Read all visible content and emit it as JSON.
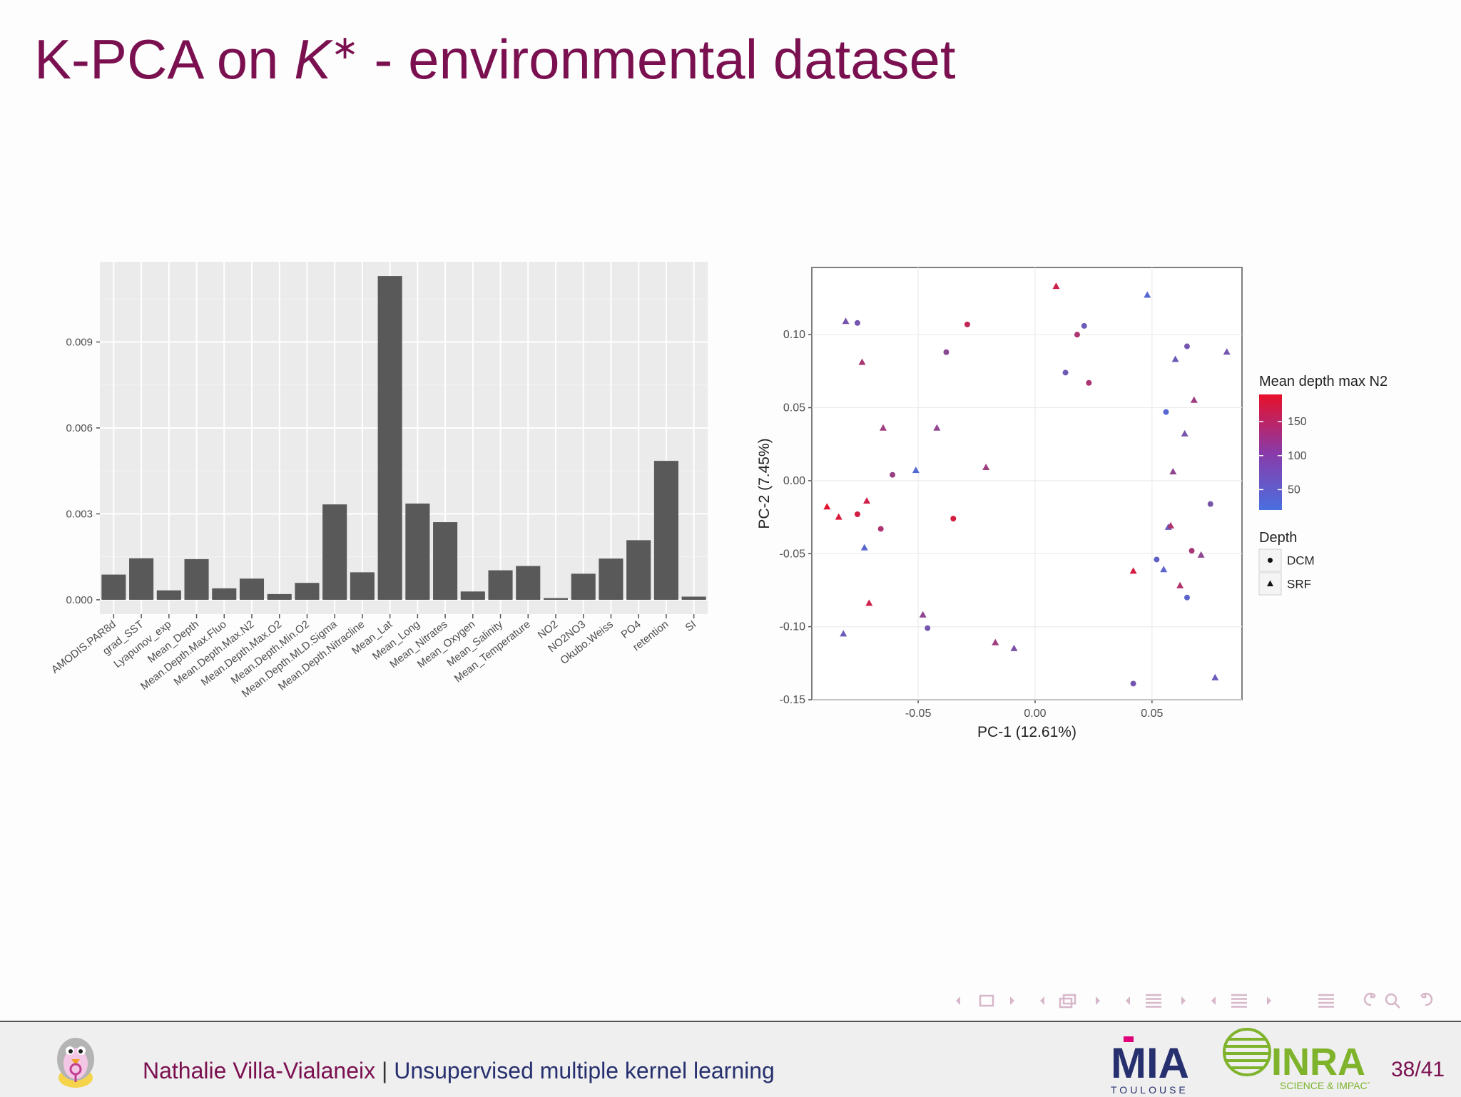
{
  "slide": {
    "title_prefix": "K-PCA on ",
    "title_k": "K",
    "title_star": "∗",
    "title_suffix": " - environmental dataset"
  },
  "footer": {
    "author": "Nathalie Villa-Vialaneix",
    "separator": " | ",
    "talk": "Unsupervised multiple kernel learning",
    "page": "38/41",
    "mia_text": "MIA",
    "mia_sub": "TOULOUSE",
    "inra_text": "INRA",
    "inra_sub": "SCIENCE & IMPACT"
  },
  "nav_icons": [
    "nav-left-arrow-icon",
    "nav-frame-icon",
    "nav-right-arrow-icon",
    "nav-left-arrow-icon",
    "nav-subsection-icon",
    "nav-right-arrow-icon",
    "nav-left-arrow-icon",
    "nav-section-icon",
    "nav-right-arrow-icon",
    "nav-left-arrow-icon",
    "nav-doc-icon",
    "nav-right-arrow-icon",
    "nav-toc-icon",
    "nav-back-icon",
    "nav-search-icon",
    "nav-forward-icon"
  ],
  "colors": {
    "title": "#7a1050",
    "bar_fill": "#595959",
    "panel_bg": "#ebebeb",
    "scale_low": "#4a6fe0",
    "scale_high": "#e8102a"
  },
  "chart_data": [
    {
      "type": "bar",
      "title": "",
      "xlabel": "",
      "ylabel": "",
      "ylim": [
        -0.0005,
        0.0118
      ],
      "yticks": [
        0.0,
        0.003,
        0.006,
        0.009
      ],
      "ytick_labels": [
        "0.000",
        "0.003",
        "0.006",
        "0.009"
      ],
      "grid": true,
      "categories": [
        "AMODIS.PAR8d",
        "grad_SST",
        "Lyapunov_exp",
        "Mean_Depth",
        "Mean.Depth.Max.Fluo",
        "Mean.Depth.Max.N2",
        "Mean.Depth.Max.O2",
        "Mean.Depth.Min.O2",
        "Mean.Depth.MLD.Sigma",
        "Mean.Depth.Nitracline",
        "Mean_Lat",
        "Mean_Long",
        "Mean_Nitrates",
        "Mean_Oxygen",
        "Mean_Salinity",
        "Mean_Temperature",
        "NO2",
        "NO2NO3",
        "Okubo.Weiss",
        "PO4",
        "retention",
        "SI"
      ],
      "values": [
        0.00088,
        0.00145,
        0.00033,
        0.00142,
        0.0004,
        0.00074,
        0.0002,
        0.00059,
        0.00333,
        0.00096,
        0.0113,
        0.00336,
        0.00271,
        0.00029,
        0.00103,
        0.00118,
        6e-05,
        0.00091,
        0.00144,
        0.00208,
        0.00485,
        0.00011
      ]
    },
    {
      "type": "scatter",
      "title": "",
      "xlabel": "PC-1 (12.61%)",
      "ylabel": "PC-2 (7.45%)",
      "xlim": [
        -0.0955,
        0.0885
      ],
      "ylim": [
        -0.15,
        0.146
      ],
      "xticks": [
        -0.05,
        0.0,
        0.05
      ],
      "xtick_labels": [
        "-0.05",
        "0.00",
        "0.05"
      ],
      "yticks": [
        -0.15,
        -0.1,
        -0.05,
        0.0,
        0.05,
        0.1
      ],
      "ytick_labels": [
        "-0.15",
        "-0.10",
        "-0.05",
        "0.00",
        "0.05",
        "0.10"
      ],
      "grid": true,
      "legend_position": "right",
      "color_legend": {
        "title": "Mean depth max N2",
        "ticks": [
          50,
          100,
          150
        ],
        "tick_labels": [
          "50",
          "100",
          "150"
        ],
        "range": [
          20,
          190
        ]
      },
      "shape_legend": {
        "title": "Depth",
        "entries": [
          {
            "label": "DCM",
            "shape": "circle"
          },
          {
            "label": "SRF",
            "shape": "triangle"
          }
        ]
      },
      "points": [
        {
          "x": -0.081,
          "y": 0.109,
          "depth": "SRF",
          "n2": 70
        },
        {
          "x": -0.076,
          "y": 0.108,
          "depth": "DCM",
          "n2": 65
        },
        {
          "x": -0.074,
          "y": 0.081,
          "depth": "SRF",
          "n2": 120
        },
        {
          "x": -0.065,
          "y": 0.036,
          "depth": "SRF",
          "n2": 110
        },
        {
          "x": -0.061,
          "y": 0.004,
          "depth": "DCM",
          "n2": 105
        },
        {
          "x": -0.051,
          "y": 0.007,
          "depth": "SRF",
          "n2": 30
        },
        {
          "x": -0.042,
          "y": 0.036,
          "depth": "SRF",
          "n2": 95
        },
        {
          "x": -0.038,
          "y": 0.088,
          "depth": "DCM",
          "n2": 90
        },
        {
          "x": -0.029,
          "y": 0.107,
          "depth": "DCM",
          "n2": 150
        },
        {
          "x": -0.021,
          "y": 0.009,
          "depth": "SRF",
          "n2": 110
        },
        {
          "x": -0.089,
          "y": -0.018,
          "depth": "SRF",
          "n2": 185
        },
        {
          "x": -0.084,
          "y": -0.025,
          "depth": "SRF",
          "n2": 175
        },
        {
          "x": -0.076,
          "y": -0.023,
          "depth": "DCM",
          "n2": 165
        },
        {
          "x": -0.072,
          "y": -0.014,
          "depth": "SRF",
          "n2": 160
        },
        {
          "x": -0.066,
          "y": -0.033,
          "depth": "DCM",
          "n2": 125
        },
        {
          "x": -0.073,
          "y": -0.046,
          "depth": "SRF",
          "n2": 35
        },
        {
          "x": -0.071,
          "y": -0.084,
          "depth": "SRF",
          "n2": 160
        },
        {
          "x": -0.082,
          "y": -0.105,
          "depth": "SRF",
          "n2": 55
        },
        {
          "x": -0.048,
          "y": -0.092,
          "depth": "SRF",
          "n2": 95
        },
        {
          "x": -0.046,
          "y": -0.101,
          "depth": "DCM",
          "n2": 65
        },
        {
          "x": -0.035,
          "y": -0.026,
          "depth": "DCM",
          "n2": 170
        },
        {
          "x": -0.017,
          "y": -0.111,
          "depth": "SRF",
          "n2": 110
        },
        {
          "x": -0.009,
          "y": -0.115,
          "depth": "SRF",
          "n2": 75
        },
        {
          "x": 0.009,
          "y": 0.133,
          "depth": "SRF",
          "n2": 160
        },
        {
          "x": 0.013,
          "y": 0.074,
          "depth": "DCM",
          "n2": 60
        },
        {
          "x": 0.018,
          "y": 0.1,
          "depth": "DCM",
          "n2": 125
        },
        {
          "x": 0.021,
          "y": 0.106,
          "depth": "DCM",
          "n2": 55
        },
        {
          "x": 0.023,
          "y": 0.067,
          "depth": "DCM",
          "n2": 125
        },
        {
          "x": 0.048,
          "y": 0.127,
          "depth": "SRF",
          "n2": 35
        },
        {
          "x": 0.042,
          "y": -0.062,
          "depth": "SRF",
          "n2": 170
        },
        {
          "x": 0.042,
          "y": -0.139,
          "depth": "DCM",
          "n2": 65
        },
        {
          "x": 0.052,
          "y": -0.054,
          "depth": "DCM",
          "n2": 45
        },
        {
          "x": 0.055,
          "y": -0.061,
          "depth": "SRF",
          "n2": 40
        },
        {
          "x": 0.056,
          "y": 0.047,
          "depth": "DCM",
          "n2": 35
        },
        {
          "x": 0.057,
          "y": -0.032,
          "depth": "SRF",
          "n2": 45
        },
        {
          "x": 0.058,
          "y": -0.031,
          "depth": "SRF",
          "n2": 130
        },
        {
          "x": 0.059,
          "y": 0.006,
          "depth": "SRF",
          "n2": 95
        },
        {
          "x": 0.06,
          "y": 0.083,
          "depth": "SRF",
          "n2": 60
        },
        {
          "x": 0.062,
          "y": -0.072,
          "depth": "SRF",
          "n2": 130
        },
        {
          "x": 0.064,
          "y": 0.032,
          "depth": "SRF",
          "n2": 70
        },
        {
          "x": 0.065,
          "y": 0.092,
          "depth": "DCM",
          "n2": 65
        },
        {
          "x": 0.065,
          "y": -0.08,
          "depth": "DCM",
          "n2": 40
        },
        {
          "x": 0.067,
          "y": -0.048,
          "depth": "DCM",
          "n2": 120
        },
        {
          "x": 0.068,
          "y": 0.055,
          "depth": "SRF",
          "n2": 110
        },
        {
          "x": 0.071,
          "y": -0.051,
          "depth": "SRF",
          "n2": 95
        },
        {
          "x": 0.075,
          "y": -0.016,
          "depth": "DCM",
          "n2": 70
        },
        {
          "x": 0.077,
          "y": -0.135,
          "depth": "SRF",
          "n2": 55
        },
        {
          "x": 0.082,
          "y": 0.088,
          "depth": "SRF",
          "n2": 65
        }
      ]
    }
  ]
}
